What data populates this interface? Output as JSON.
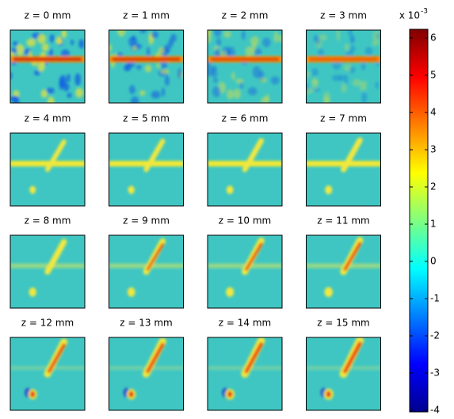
{
  "chart_data": {
    "type": "heatmap-grid",
    "panel_titles": [
      "z = 0 mm",
      "z = 1 mm",
      "z = 2 mm",
      "z = 3 mm",
      "z = 4 mm",
      "z = 5 mm",
      "z = 6 mm",
      "z = 7 mm",
      "z = 8 mm",
      "z = 9 mm",
      "z = 10 mm",
      "z = 11 mm",
      "z = 12 mm",
      "z = 13 mm",
      "z = 14 mm",
      "z = 15 mm"
    ],
    "colorbar": {
      "clim": [
        -4,
        6
      ],
      "ticks": [
        -4,
        -3,
        -2,
        -1,
        0,
        1,
        2,
        3,
        4,
        5,
        6
      ],
      "multiplier_base": "x 10",
      "multiplier_exponent": "-3"
    }
  }
}
